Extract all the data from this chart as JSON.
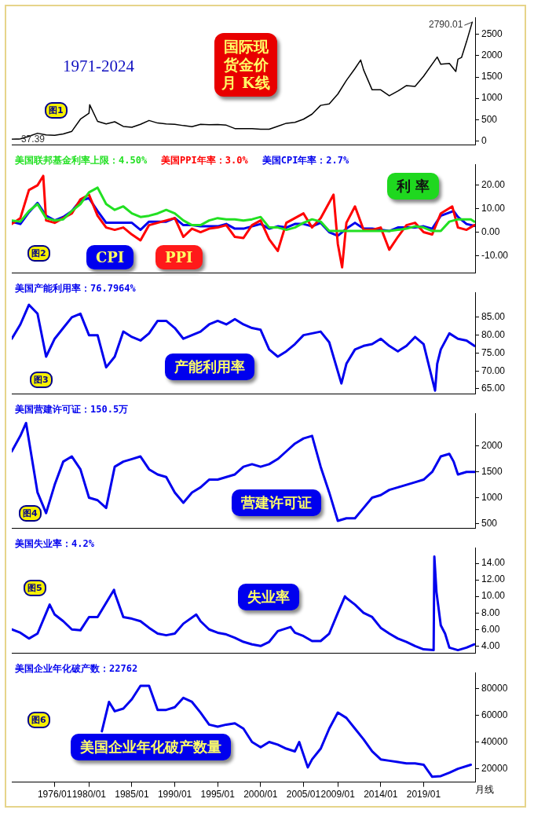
{
  "chart_data": [
    {
      "type": "line",
      "title": "国际现货金价月 K线",
      "subtitle": "1971-2024",
      "xlim": [
        "1971-01",
        "2025-01"
      ],
      "ylim": [
        -100,
        2900
      ],
      "yticks": [
        0,
        500,
        1000,
        1500,
        2000,
        2500
      ],
      "tick_labels": "y",
      "grid": false,
      "annotations": [
        {
          "text": "2790.01",
          "x": "2024-09",
          "y": 2790.01
        },
        {
          "text": "37.39",
          "x": "1971-01",
          "y": 37.39
        },
        "图1"
      ],
      "series": [
        {
          "color": "#000000",
          "x": [
            "1971-01",
            "1972-01",
            "1973-01",
            "1974-01",
            "1975-01",
            "1976-01",
            "1977-01",
            "1978-01",
            "1979-01",
            "1980-01",
            "1980-02",
            "1981-01",
            "1982-01",
            "1983-01",
            "1984-01",
            "1985-01",
            "1986-01",
            "1987-01",
            "1988-01",
            "1989-01",
            "1990-01",
            "1991-01",
            "1992-01",
            "1993-01",
            "1994-01",
            "1995-01",
            "1996-01",
            "1997-01",
            "1998-01",
            "1999-01",
            "2000-01",
            "2001-01",
            "2002-01",
            "2003-01",
            "2004-01",
            "2005-01",
            "2006-01",
            "2007-01",
            "2008-01",
            "2009-01",
            "2010-01",
            "2011-01",
            "2011-09",
            "2012-01",
            "2013-01",
            "2014-01",
            "2015-01",
            "2016-01",
            "2017-01",
            "2018-01",
            "2019-01",
            "2020-08",
            "2021-01",
            "2022-01",
            "2022-10",
            "2023-01",
            "2023-06",
            "2024-01",
            "2024-09"
          ],
          "values": [
            37.39,
            48,
            110,
            180,
            140,
            130,
            165,
            225,
            510,
            650,
            850,
            460,
            400,
            450,
            340,
            320,
            390,
            480,
            420,
            400,
            390,
            360,
            335,
            390,
            380,
            385,
            370,
            290,
            290,
            290,
            275,
            275,
            345,
            415,
            435,
            510,
            630,
            835,
            870,
            1100,
            1420,
            1700,
            1900,
            1670,
            1200,
            1200,
            1060,
            1170,
            1300,
            1280,
            1520,
            1970,
            1800,
            1820,
            1630,
            1920,
            1960,
            2330,
            2790.01
          ]
        }
      ]
    },
    {
      "type": "line",
      "xlim": [
        "1971-01",
        "2025-01"
      ],
      "ylim": [
        -17.5,
        29
      ],
      "yticks": [
        {
          "value": -10,
          "label": "-10.00"
        },
        {
          "value": 0,
          "label": "0.00"
        },
        {
          "value": 10,
          "label": "10.00"
        },
        {
          "value": 20,
          "label": "20.00"
        }
      ],
      "tick_labels": "y",
      "grid": false,
      "legend": "top left",
      "annotations": [
        "利 率",
        "CPI",
        "PPI",
        "图2"
      ],
      "series": [
        {
          "name": "美国联邦基金利率上限：4.50%",
          "color": "#22e022",
          "x": [
            "1971-01",
            "1972-01",
            "1973-01",
            "1974-01",
            "1975-01",
            "1976-01",
            "1977-01",
            "1978-01",
            "1979-01",
            "1980-01",
            "1981-01",
            "1982-01",
            "1983-01",
            "1984-01",
            "1985-01",
            "1986-01",
            "1987-01",
            "1988-01",
            "1989-01",
            "1990-01",
            "1991-01",
            "1992-01",
            "1993-01",
            "1994-01",
            "1995-01",
            "1996-01",
            "1997-01",
            "1998-01",
            "1999-01",
            "2000-01",
            "2001-01",
            "2002-01",
            "2003-01",
            "2004-01",
            "2005-01",
            "2006-01",
            "2007-01",
            "2008-01",
            "2009-01",
            "2011-01",
            "2013-01",
            "2015-01",
            "2016-01",
            "2017-01",
            "2018-01",
            "2019-01",
            "2020-01",
            "2021-01",
            "2022-01",
            "2023-01",
            "2024-07",
            "2024-12"
          ],
          "values": [
            5,
            4.5,
            9,
            12,
            6,
            5,
            5.5,
            9,
            12,
            17,
            19,
            12,
            9.5,
            11,
            8,
            6.5,
            7,
            8,
            9.5,
            8,
            5,
            3,
            3,
            5,
            6,
            5.5,
            5.5,
            5,
            5.5,
            6.5,
            2,
            2,
            1,
            2,
            4,
            5.5,
            4.5,
            0.5,
            0.5,
            0.5,
            0.5,
            0.5,
            1,
            1.5,
            2.5,
            2,
            0.5,
            0.5,
            4.5,
            5.5,
            5.5,
            4.5
          ]
        },
        {
          "name": "美国PPI年率：3.0%",
          "color": "#ff0000",
          "x": [
            "1971-01",
            "1972-01",
            "1973-01",
            "1974-01",
            "1974-09",
            "1975-01",
            "1976-01",
            "1977-01",
            "1978-01",
            "1979-01",
            "1980-01",
            "1981-01",
            "1982-01",
            "1983-01",
            "1984-01",
            "1985-01",
            "1986-01",
            "1987-01",
            "1988-01",
            "1989-01",
            "1990-01",
            "1991-01",
            "1992-01",
            "1993-01",
            "1994-01",
            "1995-01",
            "1996-01",
            "1997-01",
            "1998-01",
            "1999-01",
            "2000-01",
            "2001-01",
            "2002-01",
            "2003-01",
            "2004-01",
            "2005-01",
            "2006-01",
            "2007-01",
            "2008-07",
            "2009-01",
            "2009-07",
            "2010-01",
            "2011-01",
            "2012-01",
            "2013-01",
            "2014-01",
            "2015-01",
            "2016-01",
            "2017-01",
            "2018-01",
            "2019-01",
            "2020-01",
            "2021-01",
            "2022-05",
            "2023-01",
            "2024-01",
            "2024-12"
          ],
          "values": [
            3.5,
            6,
            18,
            20,
            24,
            5,
            4,
            6,
            8,
            14,
            16,
            7,
            2,
            1,
            2,
            -1,
            -3.5,
            3,
            4,
            5,
            6,
            -2,
            1.5,
            0,
            1.5,
            2,
            3,
            -2,
            -2.5,
            3,
            5,
            -3,
            -8,
            4,
            6,
            8,
            2,
            6,
            16,
            -5,
            -15,
            4,
            11,
            1,
            1,
            2,
            -7.5,
            -2,
            3,
            4,
            0,
            -1,
            8,
            11,
            2,
            1,
            3
          ]
        },
        {
          "name": "美国CPI年率：2.7%",
          "color": "#0000ee",
          "x": [
            "1971-01",
            "1972-01",
            "1973-01",
            "1974-01",
            "1975-01",
            "1976-01",
            "1977-01",
            "1978-01",
            "1979-01",
            "1980-01",
            "1981-01",
            "1982-01",
            "1983-01",
            "1984-01",
            "1985-01",
            "1986-01",
            "1987-01",
            "1988-01",
            "1989-01",
            "1990-01",
            "1991-01",
            "1992-01",
            "1993-01",
            "1994-01",
            "1995-01",
            "1996-01",
            "1997-01",
            "1998-01",
            "1999-01",
            "2000-01",
            "2001-01",
            "2002-01",
            "2003-01",
            "2004-01",
            "2005-01",
            "2006-01",
            "2007-01",
            "2008-01",
            "2009-01",
            "2010-01",
            "2011-01",
            "2012-01",
            "2013-01",
            "2014-01",
            "2015-01",
            "2016-01",
            "2017-01",
            "2018-01",
            "2019-01",
            "2020-01",
            "2021-01",
            "2022-07",
            "2023-01",
            "2024-01",
            "2024-12"
          ],
          "values": [
            4.5,
            3.5,
            8.5,
            12.5,
            7,
            5,
            6.5,
            9,
            13.5,
            14.5,
            9,
            4,
            4,
            4,
            4,
            1,
            4.5,
            4.5,
            4.5,
            6,
            3,
            3,
            2.5,
            2.5,
            2.5,
            3.5,
            1.5,
            1.5,
            2.5,
            3.5,
            1.5,
            2.5,
            2,
            3.5,
            3.5,
            2.5,
            4,
            0,
            -1.5,
            1.5,
            4,
            1.5,
            1.5,
            1,
            0.5,
            2,
            2,
            2,
            2.5,
            1.5,
            7,
            9,
            6.5,
            3.5,
            2.7
          ]
        }
      ]
    },
    {
      "type": "line",
      "xlim": [
        "1971-01",
        "2025-01"
      ],
      "ylim": [
        63.5,
        92
      ],
      "yticks": [
        {
          "value": 65,
          "label": "65.00"
        },
        {
          "value": 70,
          "label": "70.00"
        },
        {
          "value": 75,
          "label": "75.00"
        },
        {
          "value": 80,
          "label": "80.00"
        },
        {
          "value": 85,
          "label": "85.00"
        }
      ],
      "tick_labels": "y",
      "grid": false,
      "legend": "top left",
      "annotations": [
        "产能利用率",
        "图3"
      ],
      "series": [
        {
          "name": "美国产能利用率：76.7964%",
          "color": "#0000ee",
          "x": [
            "1971-01",
            "1972-01",
            "1973-01",
            "1974-01",
            "1975-01",
            "1976-01",
            "1977-01",
            "1978-01",
            "1979-01",
            "1980-01",
            "1981-01",
            "1982-01",
            "1983-01",
            "1984-01",
            "1985-01",
            "1986-01",
            "1987-01",
            "1988-01",
            "1989-01",
            "1990-01",
            "1991-01",
            "1992-01",
            "1993-01",
            "1994-01",
            "1995-01",
            "1996-01",
            "1997-01",
            "1998-01",
            "1999-01",
            "2000-01",
            "2001-01",
            "2002-01",
            "2003-01",
            "2004-01",
            "2005-01",
            "2006-01",
            "2007-01",
            "2008-01",
            "2009-06",
            "2010-01",
            "2011-01",
            "2012-01",
            "2013-01",
            "2014-01",
            "2015-01",
            "2016-01",
            "2017-01",
            "2018-01",
            "2019-01",
            "2020-05",
            "2020-08",
            "2021-01",
            "2022-01",
            "2023-01",
            "2024-01",
            "2024-12"
          ],
          "values": [
            79,
            83,
            88.5,
            86,
            74,
            79,
            82,
            85,
            86,
            80,
            80,
            71,
            74,
            81,
            79.5,
            78.5,
            80.5,
            84,
            84,
            82,
            79,
            80,
            81,
            83,
            84,
            83,
            84.5,
            83,
            82,
            81.5,
            76,
            74,
            75.5,
            77.5,
            80,
            80.5,
            81,
            78,
            66.5,
            72,
            76,
            77,
            77.5,
            79,
            77,
            75.5,
            77,
            79.5,
            77.5,
            64.5,
            72,
            76,
            80.5,
            79,
            78.5,
            77
          ]
        }
      ]
    },
    {
      "type": "line",
      "xlim": [
        "1971-01",
        "2025-01"
      ],
      "ylim": [
        400,
        2640
      ],
      "yticks": [
        500,
        1000,
        1500,
        2000
      ],
      "tick_labels": "y",
      "grid": false,
      "legend": "top left",
      "annotations": [
        "营建许可证",
        "图4"
      ],
      "series": [
        {
          "name": "美国营建许可证：150.5万",
          "color": "#0000ee",
          "x": [
            "1971-01",
            "1972-01",
            "1972-09",
            "1974-01",
            "1975-01",
            "1976-01",
            "1977-01",
            "1978-01",
            "1979-01",
            "1980-01",
            "1981-01",
            "1982-01",
            "1983-01",
            "1984-01",
            "1985-01",
            "1986-01",
            "1987-01",
            "1988-01",
            "1989-01",
            "1990-01",
            "1991-01",
            "1992-01",
            "1993-01",
            "1994-01",
            "1995-01",
            "1996-01",
            "1997-01",
            "1998-01",
            "1999-01",
            "2000-01",
            "2001-01",
            "2002-01",
            "2003-01",
            "2004-01",
            "2005-01",
            "2006-01",
            "2007-01",
            "2008-01",
            "2009-01",
            "2010-01",
            "2011-01",
            "2012-01",
            "2013-01",
            "2014-01",
            "2015-01",
            "2016-01",
            "2017-01",
            "2018-01",
            "2019-01",
            "2020-01",
            "2021-01",
            "2022-01",
            "2022-07",
            "2023-01",
            "2024-01",
            "2024-12"
          ],
          "values": [
            1900,
            2200,
            2450,
            1100,
            700,
            1250,
            1700,
            1800,
            1550,
            1000,
            950,
            800,
            1600,
            1700,
            1750,
            1800,
            1550,
            1450,
            1400,
            1100,
            900,
            1100,
            1200,
            1350,
            1350,
            1400,
            1450,
            1600,
            1650,
            1600,
            1650,
            1750,
            1900,
            2050,
            2150,
            2200,
            1600,
            1100,
            550,
            600,
            600,
            800,
            1000,
            1050,
            1150,
            1200,
            1250,
            1300,
            1350,
            1500,
            1800,
            1850,
            1700,
            1450,
            1500,
            1500
          ]
        }
      ]
    },
    {
      "type": "line",
      "xlim": [
        "1971-01",
        "2025-01"
      ],
      "ylim": [
        3.1,
        15.9
      ],
      "yticks": [
        {
          "value": 4,
          "label": "4.00"
        },
        {
          "value": 6,
          "label": "6.00"
        },
        {
          "value": 8,
          "label": "8.00"
        },
        {
          "value": 10,
          "label": "10.00"
        },
        {
          "value": 12,
          "label": "12.00"
        },
        {
          "value": 14,
          "label": "14.00"
        }
      ],
      "tick_labels": "y",
      "grid": false,
      "legend": "top left",
      "annotations": [
        "失业率",
        "图5"
      ],
      "series": [
        {
          "name": "美国失业率：4.2%",
          "color": "#0000ee",
          "x": [
            "1971-01",
            "1972-01",
            "1973-01",
            "1974-01",
            "1975-06",
            "1976-01",
            "1977-01",
            "1978-01",
            "1979-01",
            "1980-01",
            "1981-01",
            "1982-12",
            "1983-01",
            "1984-01",
            "1985-01",
            "1986-01",
            "1987-01",
            "1988-01",
            "1989-01",
            "1990-01",
            "1991-01",
            "1992-07",
            "1993-01",
            "1994-01",
            "1995-01",
            "1996-01",
            "1997-01",
            "1998-01",
            "1999-01",
            "2000-01",
            "2001-01",
            "2002-01",
            "2003-07",
            "2004-01",
            "2005-01",
            "2006-01",
            "2007-01",
            "2008-01",
            "2009-01",
            "2009-11",
            "2010-01",
            "2011-01",
            "2012-01",
            "2013-01",
            "2014-01",
            "2015-01",
            "2016-01",
            "2017-01",
            "2018-01",
            "2019-01",
            "2020-03",
            "2020-04",
            "2020-07",
            "2021-01",
            "2021-07",
            "2022-01",
            "2023-01",
            "2024-01",
            "2024-12"
          ],
          "values": [
            6,
            5.6,
            4.9,
            5.5,
            9,
            7.8,
            7,
            6,
            5.9,
            7.5,
            7.5,
            10.8,
            10.4,
            7.5,
            7.3,
            7,
            6.2,
            5.5,
            5.3,
            5.5,
            6.7,
            7.8,
            7,
            6,
            5.6,
            5.4,
            5,
            4.5,
            4.2,
            4,
            4.5,
            5.8,
            6.3,
            5.6,
            5.2,
            4.6,
            4.6,
            5.5,
            8,
            10,
            9.8,
            9,
            8,
            7.5,
            6.2,
            5.5,
            4.9,
            4.5,
            4,
            3.6,
            3.5,
            14.8,
            10.5,
            6.5,
            5.5,
            3.8,
            3.5,
            3.8,
            4.2
          ]
        }
      ]
    },
    {
      "type": "line",
      "xlim": [
        "1971-01",
        "2025-01"
      ],
      "ylim": [
        10000,
        92000
      ],
      "yticks": [
        20000,
        40000,
        60000,
        80000
      ],
      "xticks": [
        {
          "value": "1976-01",
          "label": "1976/01"
        },
        {
          "value": "1980-01",
          "label": "1980/01"
        },
        {
          "value": "1985-01",
          "label": "1985/01"
        },
        {
          "value": "1990-01",
          "label": "1990/01"
        },
        {
          "value": "1995-01",
          "label": "1995/01"
        },
        {
          "value": "2000-01",
          "label": "2000/01"
        },
        {
          "value": "2005-01",
          "label": "2005/01"
        },
        {
          "value": "2009-01",
          "label": "2009/01"
        },
        {
          "value": "2014-01",
          "label": "2014/01"
        },
        {
          "value": "2019-01",
          "label": "2019/01"
        }
      ],
      "grid": false,
      "legend": "top left",
      "annotations": [
        "美国企业年化破产数量",
        "图6",
        "月线"
      ],
      "series": [
        {
          "name": "美国企业年化破产数：22762",
          "color": "#0000ee",
          "x": [
            "1981-07",
            "1982-05",
            "1983-01",
            "1984-01",
            "1985-01",
            "1986-01",
            "1987-01",
            "1988-01",
            "1989-01",
            "1990-01",
            "1991-01",
            "1992-01",
            "1993-01",
            "1994-01",
            "1995-01",
            "1996-01",
            "1997-01",
            "1998-01",
            "1999-01",
            "2000-01",
            "2001-01",
            "2002-01",
            "2003-01",
            "2004-01",
            "2004-07",
            "2005-07",
            "2006-01",
            "2007-01",
            "2008-01",
            "2009-01",
            "2010-01",
            "2011-01",
            "2012-01",
            "2013-01",
            "2014-01",
            "2015-01",
            "2016-01",
            "2017-01",
            "2018-01",
            "2019-01",
            "2020-01",
            "2021-01",
            "2022-01",
            "2023-01",
            "2024-07"
          ],
          "values": [
            48000,
            70000,
            63000,
            65000,
            72000,
            82000,
            82000,
            64000,
            64000,
            66000,
            73000,
            70000,
            62000,
            53000,
            51500,
            53000,
            54000,
            50000,
            40000,
            36000,
            40000,
            38000,
            35000,
            33000,
            40000,
            21000,
            27000,
            35000,
            50000,
            62000,
            58000,
            50000,
            42000,
            33000,
            27000,
            26000,
            25000,
            24000,
            24000,
            23000,
            14000,
            14500,
            17000,
            20000,
            23000
          ]
        }
      ]
    }
  ]
}
